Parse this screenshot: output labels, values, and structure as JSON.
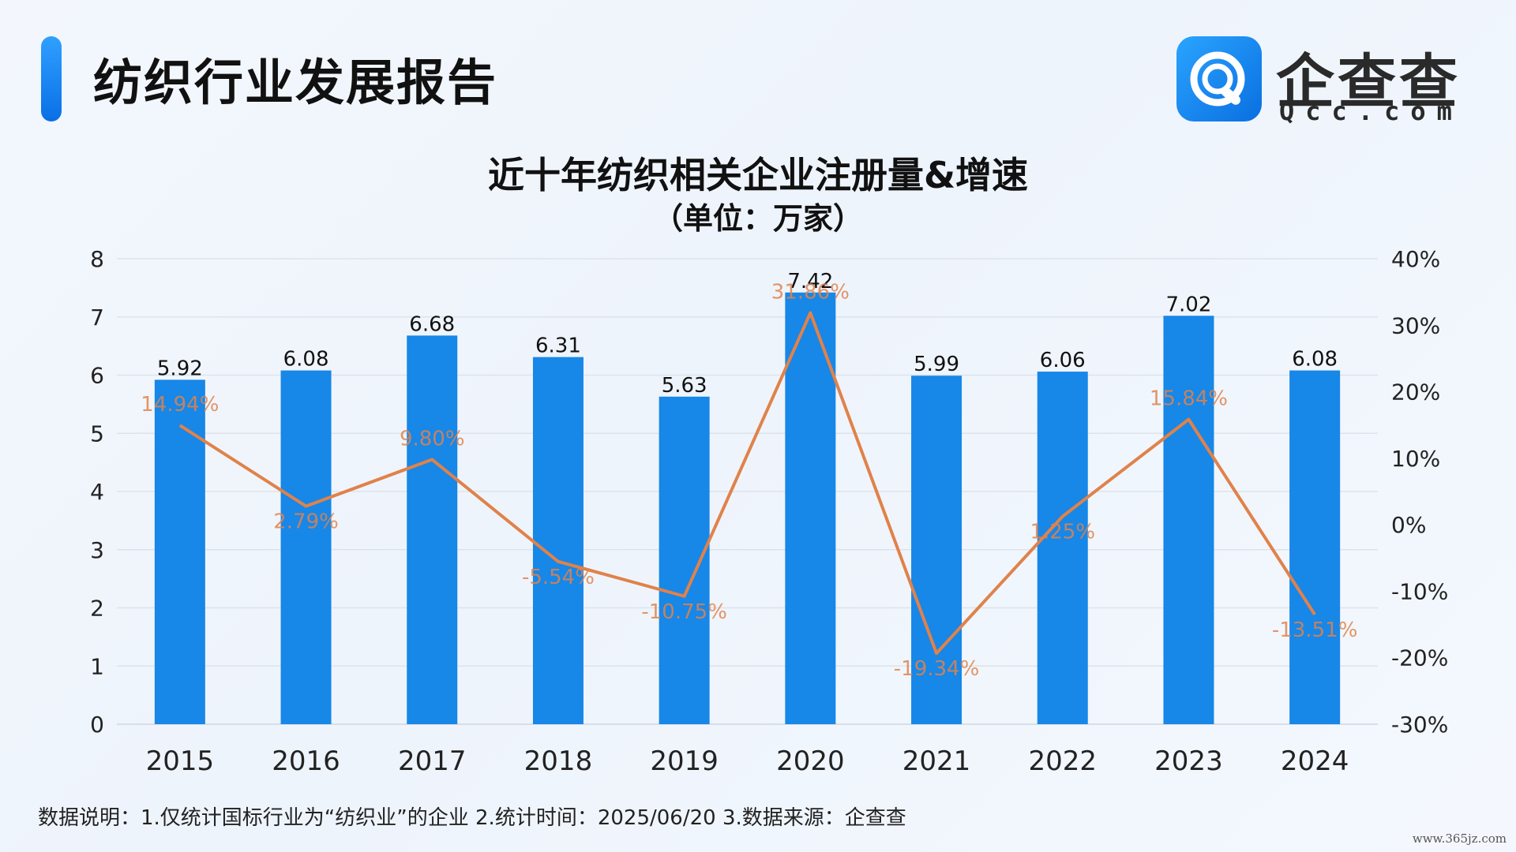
{
  "header": {
    "title": "纺织行业发展报告",
    "logo_text": "企查查",
    "logo_sub": "Qcc.com"
  },
  "footnote": "数据说明：1.仅统计国标行业为“纺织业”的企业  2.统计时间：2025/06/20  3.数据来源：企查查",
  "watermark": "www.365jz.com",
  "colors": {
    "bar": "#1787e8",
    "line": "#e0824a",
    "accent": "#1478ea"
  },
  "chart_data": {
    "type": "bar",
    "title": "近十年纺织相关企业注册量&增速",
    "subtitle": "（单位：万家）",
    "categories": [
      "2015",
      "2016",
      "2017",
      "2018",
      "2019",
      "2020",
      "2021",
      "2022",
      "2023",
      "2024"
    ],
    "series": [
      {
        "type": "bar",
        "axis": "left",
        "values": [
          5.92,
          6.08,
          6.68,
          6.31,
          5.63,
          7.42,
          5.99,
          6.06,
          7.02,
          6.08
        ],
        "labels": [
          "5.92",
          "6.08",
          "6.68",
          "6.31",
          "5.63",
          "7.42",
          "5.99",
          "6.06",
          "7.02",
          "6.08"
        ]
      },
      {
        "type": "line",
        "axis": "right",
        "values": [
          14.94,
          2.79,
          9.8,
          -5.54,
          -10.75,
          31.86,
          -19.34,
          1.25,
          15.84,
          -13.51
        ],
        "labels": [
          "14.94%",
          "2.79%",
          "9.80%",
          "-5.54%",
          "-10.75%",
          "31.86%",
          "-19.34%",
          "1.25%",
          "15.84%",
          "-13.51%"
        ]
      }
    ],
    "y_left": {
      "ylim": [
        0,
        8
      ],
      "ticks": [
        "0",
        "1",
        "2",
        "3",
        "4",
        "5",
        "6",
        "7",
        "8"
      ]
    },
    "y_right": {
      "ylim": [
        -30,
        40
      ],
      "ticks": [
        "-30%",
        "-20%",
        "-10%",
        "0%",
        "10%",
        "20%",
        "30%",
        "40%"
      ]
    },
    "grid": true
  }
}
